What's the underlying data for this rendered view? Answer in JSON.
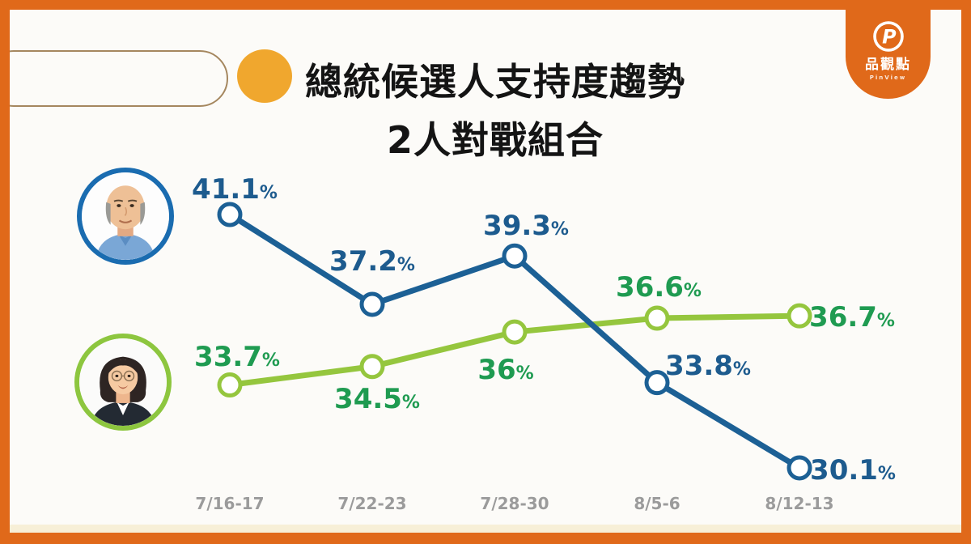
{
  "header": {
    "title_line1": "總統候選人支持度趨勢",
    "title_line2": "2人對戰組合"
  },
  "logo": {
    "monogram": "P",
    "brand_cjk": "品觀點",
    "brand_latin": "PinView"
  },
  "colors": {
    "frame": "#e0691a",
    "canvas_bg": "#fcfbf8",
    "bullet": "#f0a72e",
    "title_text": "#141414",
    "pill_outline": "#a5875f",
    "axis_label": "#9b9b9b",
    "footer_strip": "#f7efd7"
  },
  "chart_data": {
    "type": "line",
    "title": "總統候選人支持度趨勢 2人對戰組合",
    "x_categories": [
      "7/16-17",
      "7/22-23",
      "7/28-30",
      "8/5-6",
      "8/12-13"
    ],
    "series": [
      {
        "id": "blue-candidate",
        "legend": "male candidate photo, blue ring",
        "line_color": "#1c6095",
        "label_color": "#1d5b8e",
        "values": [
          41.1,
          37.2,
          39.3,
          33.8,
          30.1
        ],
        "labels": [
          "41.1",
          "37.2",
          "39.3",
          "33.8",
          "30.1"
        ]
      },
      {
        "id": "green-candidate",
        "legend": "female candidate photo, green ring",
        "line_color": "#95c63e",
        "label_color": "#1f9b51",
        "values": [
          33.7,
          34.5,
          36,
          36.6,
          36.7
        ],
        "labels": [
          "33.7",
          "34.5",
          "36",
          "36.6",
          "36.7"
        ]
      }
    ],
    "value_suffix": "%",
    "grid": false,
    "y_axis_visible": false,
    "ylim": [
      29,
      42
    ],
    "legend_position": "avatar photos left of each line"
  }
}
